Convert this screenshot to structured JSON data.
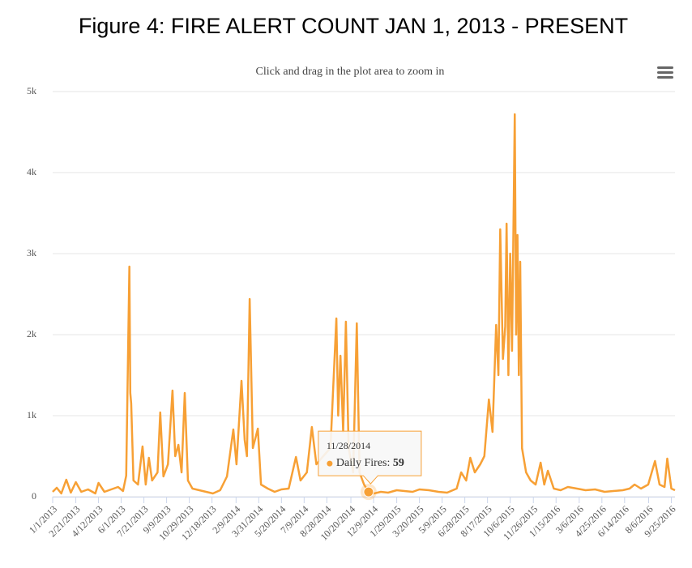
{
  "chart_data": {
    "type": "line",
    "title": "Figure 4: FIRE ALERT COUNT JAN 1, 2013 - PRESENT",
    "subtitle": "Click and drag in the plot area to zoom in",
    "xlim": [
      "1/1/2013",
      "10/3/2016"
    ],
    "xticks": [
      "1/1/2013",
      "2/21/2013",
      "4/12/2013",
      "6/1/2013",
      "7/21/2013",
      "9/9/2013",
      "10/29/2013",
      "12/18/2013",
      "2/9/2014",
      "3/31/2014",
      "5/20/2014",
      "7/9/2014",
      "8/28/2014",
      "10/20/2014",
      "12/9/2014",
      "1/29/2015",
      "3/20/2015",
      "5/9/2015",
      "6/28/2015",
      "8/17/2015",
      "10/6/2015",
      "11/26/2015",
      "1/15/2016",
      "3/6/2016",
      "4/25/2016",
      "6/14/2016",
      "8/6/2016",
      "9/25/2016"
    ],
    "ylim": [
      0,
      5000
    ],
    "yticks": [
      0,
      {
        "value": 1000,
        "label": "1k"
      },
      {
        "value": 2000,
        "label": "2k"
      },
      {
        "value": 3000,
        "label": "3k"
      },
      {
        "value": 4000,
        "label": "4k"
      },
      {
        "value": 5000,
        "label": "5k"
      }
    ],
    "grid": true,
    "x": [
      "1/1/2013",
      "1/10/2013",
      "1/20/2013",
      "1/31/2013",
      "2/10/2013",
      "2/21/2013",
      "3/5/2013",
      "3/20/2013",
      "4/5/2013",
      "4/12/2013",
      "4/25/2013",
      "5/10/2013",
      "5/25/2013",
      "6/5/2013",
      "6/12/2013",
      "6/19/2013",
      "6/21/2013",
      "6/23/2013",
      "6/28/2013",
      "7/8/2013",
      "7/18/2013",
      "7/25/2013",
      "8/1/2013",
      "8/8/2013",
      "8/20/2013",
      "8/26/2013",
      "9/2/2013",
      "9/12/2013",
      "9/22/2013",
      "9/28/2013",
      "10/5/2013",
      "10/12/2013",
      "10/19/2013",
      "10/26/2013",
      "11/5/2013",
      "11/20/2013",
      "12/5/2013",
      "12/20/2013",
      "1/5/2014",
      "1/20/2014",
      "2/3/2014",
      "2/10/2014",
      "2/21/2014",
      "2/28/2014",
      "3/5/2014",
      "3/11/2014",
      "3/18/2014",
      "3/29/2014",
      "4/5/2014",
      "4/20/2014",
      "5/5/2014",
      "5/20/2014",
      "6/5/2014",
      "6/21/2014",
      "7/1/2014",
      "7/15/2014",
      "7/26/2014",
      "8/5/2014",
      "8/20/2014",
      "9/5/2014",
      "9/18/2014",
      "9/22/2014",
      "9/27/2014",
      "10/3/2014",
      "10/9/2014",
      "10/15/2014",
      "10/25/2014",
      "11/2/2014",
      "11/8/2014",
      "11/18/2014",
      "11/28/2014",
      "12/10/2014",
      "12/25/2014",
      "1/10/2015",
      "1/29/2015",
      "2/15/2015",
      "3/5/2015",
      "3/20/2015",
      "4/10/2015",
      "5/1/2015",
      "5/20/2015",
      "6/10/2015",
      "6/20/2015",
      "7/1/2015",
      "7/10/2015",
      "7/20/2015",
      "8/1/2015",
      "8/10/2015",
      "8/20/2015",
      "8/28/2015",
      "9/5/2015",
      "9/10/2015",
      "9/14/2015",
      "9/20/2015",
      "9/25/2015",
      "9/28/2015",
      "10/2/2015",
      "10/6/2015",
      "10/10/2015",
      "10/16/2015",
      "10/19/2015",
      "10/22/2015",
      "10/25/2015",
      "10/28/2015",
      "11/1/2015",
      "11/10/2015",
      "11/20/2015",
      "12/1/2015",
      "12/12/2015",
      "12/20/2015",
      "12/28/2015",
      "1/10/2016",
      "1/25/2016",
      "2/10/2016",
      "3/1/2016",
      "3/20/2016",
      "4/10/2016",
      "5/1/2016",
      "5/20/2016",
      "6/10/2016",
      "6/25/2016",
      "7/6/2016",
      "7/20/2016",
      "8/5/2016",
      "8/20/2016",
      "8/30/2016",
      "9/10/2016",
      "9/16/2016",
      "9/25/2016",
      "10/3/2016"
    ],
    "series": [
      {
        "name": "Daily Fires",
        "color": "#f7a035",
        "values": [
          60,
          110,
          40,
          210,
          50,
          180,
          60,
          90,
          40,
          170,
          60,
          90,
          120,
          70,
          260,
          2840,
          1280,
          1150,
          200,
          150,
          620,
          150,
          480,
          200,
          300,
          1040,
          250,
          400,
          1310,
          500,
          640,
          300,
          1280,
          200,
          100,
          80,
          60,
          40,
          80,
          250,
          830,
          400,
          1430,
          700,
          500,
          2440,
          600,
          840,
          150,
          100,
          60,
          90,
          100,
          490,
          200,
          300,
          860,
          400,
          500,
          600,
          2200,
          1000,
          1740,
          800,
          2160,
          600,
          300,
          2140,
          300,
          150,
          59,
          40,
          60,
          50,
          80,
          70,
          60,
          90,
          80,
          60,
          50,
          100,
          300,
          200,
          480,
          300,
          400,
          500,
          1200,
          800,
          2120,
          1500,
          3300,
          1700,
          2100,
          3370,
          1500,
          3000,
          1800,
          4720,
          2000,
          3230,
          1500,
          2900,
          600,
          300,
          200,
          150,
          420,
          150,
          320,
          100,
          80,
          120,
          100,
          80,
          90,
          60,
          70,
          80,
          100,
          150,
          100,
          150,
          440,
          150,
          120,
          470,
          100,
          80
        ]
      }
    ],
    "tooltip": {
      "x": "11/28/2014",
      "label": "Daily Fires:",
      "value": 59
    }
  }
}
